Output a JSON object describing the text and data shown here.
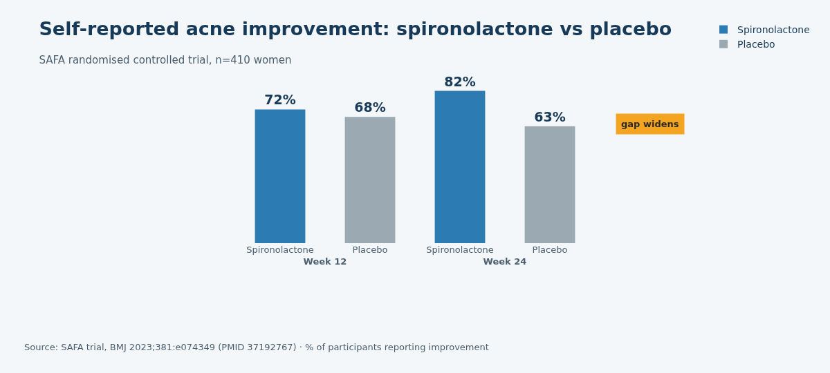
{
  "chart_data": {
    "type": "bar",
    "title": "Self-reported acne improvement: spironolactone vs placebo",
    "subtitle": "SAFA randomised controlled trial, n=410 women",
    "categories": [
      "Week 12",
      "Week 24"
    ],
    "series": [
      {
        "name": "Spironolactone",
        "color": "#2c7bb2",
        "values": [
          72,
          82
        ],
        "value_labels": [
          "72%",
          "82%"
        ]
      },
      {
        "name": "Placebo",
        "color": "#9aa9b2",
        "values": [
          68,
          63
        ],
        "value_labels": [
          "68%",
          "63%"
        ]
      }
    ],
    "legend": "top right",
    "grid": false,
    "annotations": [
      "gap widens",
      "Source: SAFA trial, BMJ 2023;381:e074349 (PMID 37192767) · % of participants reporting improvement"
    ]
  }
}
